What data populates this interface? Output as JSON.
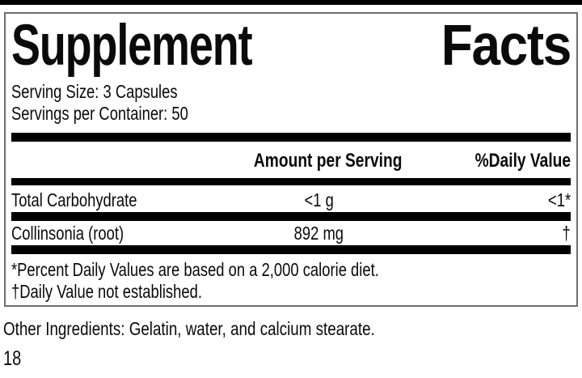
{
  "label": {
    "title": {
      "word1": "Supplement",
      "word2": "Facts"
    },
    "serving_size": "Serving Size: 3 Capsules",
    "servings_per_container": "Servings per Container: 50",
    "columns": {
      "amount": "Amount per Serving",
      "daily_value": "%Daily Value"
    },
    "rows": [
      {
        "name": "Total Carbohydrate",
        "amount": "<1 g",
        "dv": "<1*"
      },
      {
        "name": "Collinsonia (root)",
        "amount": "892 mg",
        "dv": "†"
      }
    ],
    "footnotes": [
      "*Percent Daily Values are based on a 2,000 calorie diet.",
      "†Daily Value not established."
    ]
  },
  "other_ingredients": "Other Ingredients: Gelatin, water, and calcium stearate.",
  "page_number": "18",
  "colors": {
    "text": "#0a0a0a",
    "bars": "#000000",
    "border": "#6f6f6f",
    "background": "#ffffff"
  }
}
